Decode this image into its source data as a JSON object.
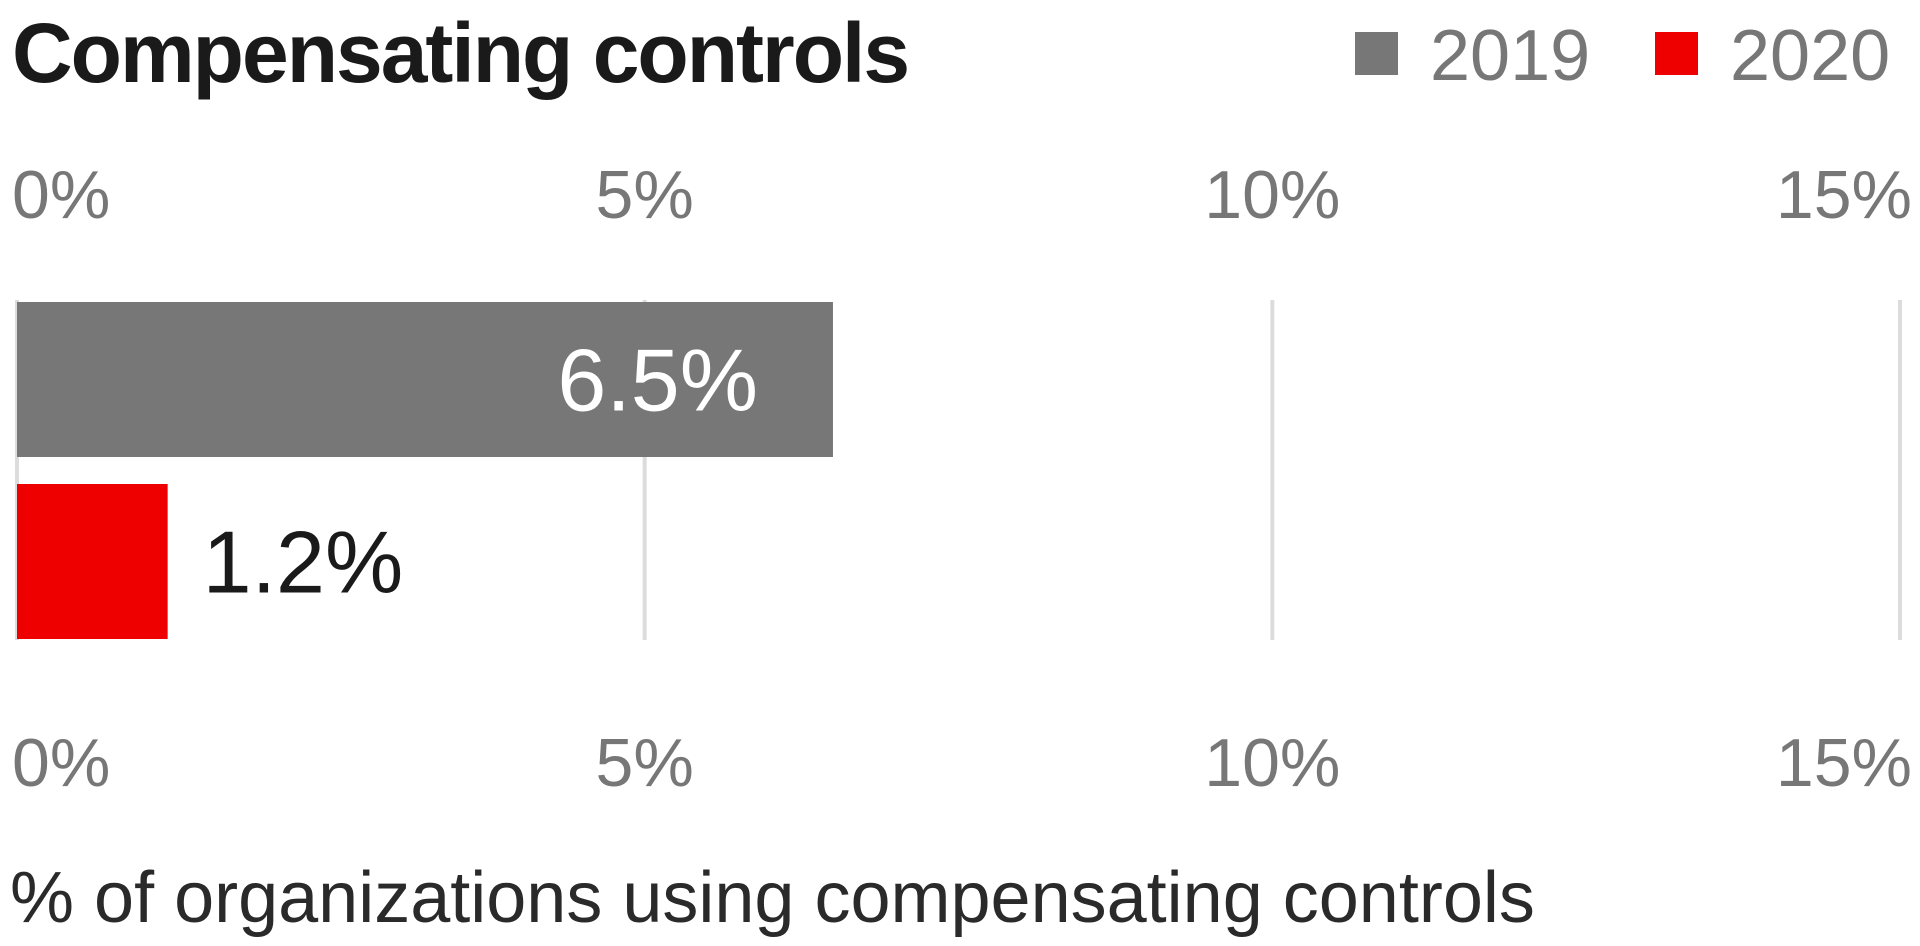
{
  "chart_data": {
    "type": "bar",
    "orientation": "horizontal",
    "title": "Compensating controls",
    "xlabel": "% of organizations using compensating controls",
    "ylabel": "",
    "xlim": [
      0,
      15
    ],
    "ticks": [
      "0%",
      "5%",
      "10%",
      "15%"
    ],
    "tick_values": [
      0,
      5,
      10,
      15
    ],
    "grid": true,
    "legend_position": "top-right",
    "series": [
      {
        "name": "2019",
        "values": [
          6.5
        ],
        "label": "6.5%",
        "color": "#777777",
        "label_position": "inside"
      },
      {
        "name": "2020",
        "values": [
          1.2
        ],
        "label": "1.2%",
        "color": "#ee0000",
        "label_position": "outside"
      }
    ],
    "categories": [
      "Compensating controls"
    ]
  }
}
